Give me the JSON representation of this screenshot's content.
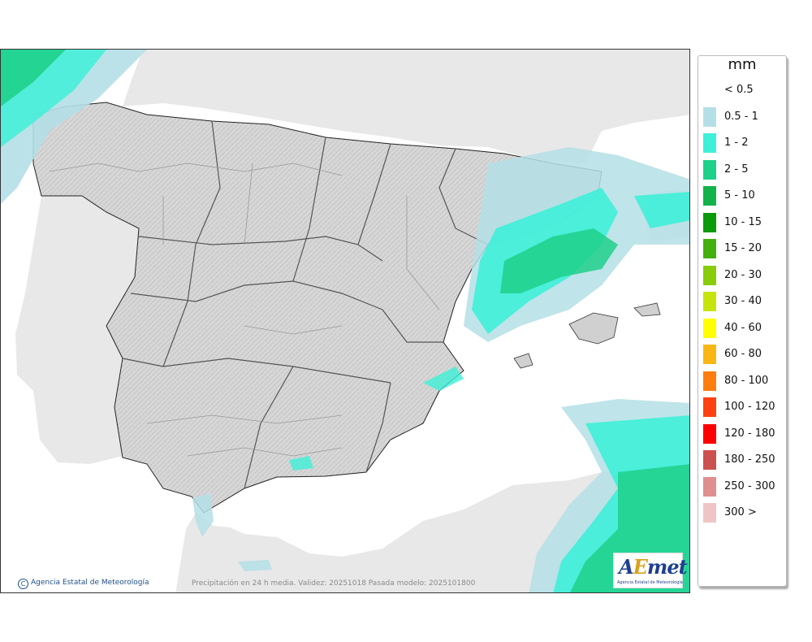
{
  "legend": {
    "unit": "mm",
    "items": [
      {
        "label": "< 0.5",
        "color": "#ffffff"
      },
      {
        "label": "0.5 - 1",
        "color": "#b4dfe6"
      },
      {
        "label": "1 - 2",
        "color": "#3ef0d8"
      },
      {
        "label": "2 - 5",
        "color": "#1fd08a"
      },
      {
        "label": "5 - 10",
        "color": "#12b34a"
      },
      {
        "label": "10 - 15",
        "color": "#0a9a0a"
      },
      {
        "label": "15 - 20",
        "color": "#44b00e"
      },
      {
        "label": "20 - 30",
        "color": "#88cc0a"
      },
      {
        "label": "30 - 40",
        "color": "#c6e40c"
      },
      {
        "label": "40 - 60",
        "color": "#ffff00"
      },
      {
        "label": "60 - 80",
        "color": "#f9b714"
      },
      {
        "label": "80 - 100",
        "color": "#ff7d0f"
      },
      {
        "label": "100 - 120",
        "color": "#ff4010"
      },
      {
        "label": "120 - 180",
        "color": "#ff0000"
      },
      {
        "label": "180 - 250",
        "color": "#cc5050"
      },
      {
        "label": "250 - 300",
        "color": "#e08f8f"
      },
      {
        "label": "300 >",
        "color": "#f0c4c4"
      }
    ]
  },
  "credit": {
    "text": "Agencia Estatal de Meteorología",
    "symbol": "C"
  },
  "footer": "Precipitación en 24 h media. Validez: 20251018 Pasada modelo: 2025101800",
  "logo": {
    "brand_prefix": "A",
    "brand_e": "E",
    "brand_suffix": "met",
    "subtitle": "Agencia Estatal de Meteorología"
  }
}
